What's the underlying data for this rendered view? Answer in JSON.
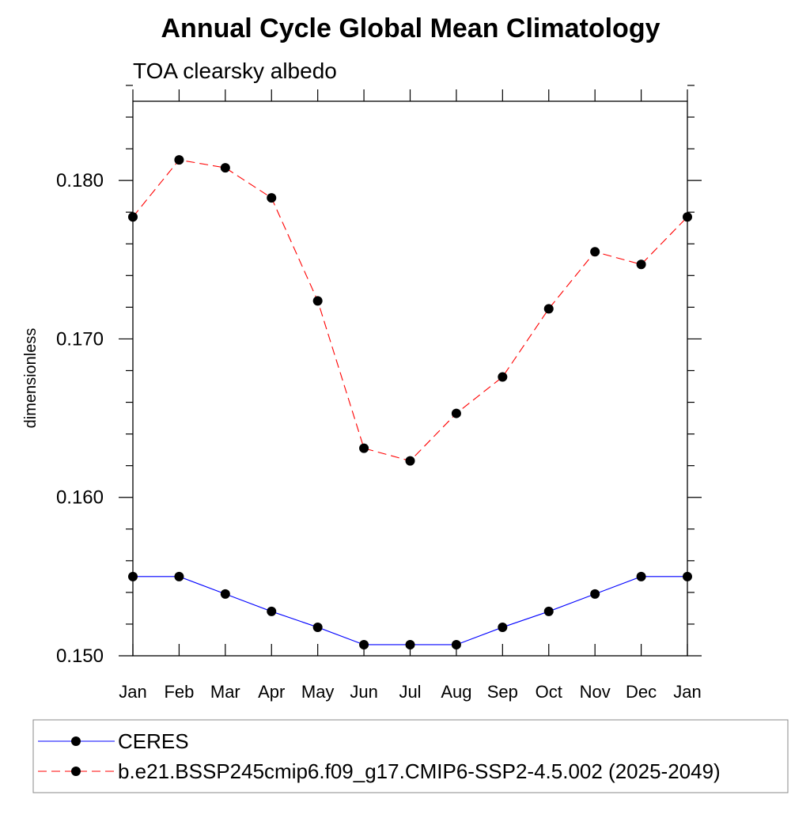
{
  "chart_data": {
    "type": "line",
    "title": "Annual Cycle Global Mean Climatology",
    "subtitle": "TOA clearsky albedo",
    "xlabel": "",
    "ylabel": "dimensionless",
    "categories": [
      "Jan",
      "Feb",
      "Mar",
      "Apr",
      "May",
      "Jun",
      "Jul",
      "Aug",
      "Sep",
      "Oct",
      "Nov",
      "Dec",
      "Jan"
    ],
    "ylim": [
      0.15,
      0.185
    ],
    "y_ticks": [
      0.15,
      0.16,
      0.17,
      0.18
    ],
    "y_tick_labels": [
      "0.150",
      "0.160",
      "0.170",
      "0.180"
    ],
    "grid": false,
    "legend_position": "bottom",
    "series": [
      {
        "name": "CERES",
        "values": [
          0.155,
          0.155,
          0.1539,
          0.1528,
          0.1518,
          0.1507,
          0.1507,
          0.1507,
          0.1518,
          0.1528,
          0.1539,
          0.155,
          0.155
        ],
        "color": "#0000ff",
        "style": "solid",
        "marker": "circle"
      },
      {
        "name": "b.e21.BSSP245cmip6.f09_g17.CMIP6-SSP2-4.5.002 (2025-2049)",
        "values": [
          0.1777,
          0.1813,
          0.1808,
          0.1789,
          0.1724,
          0.1631,
          0.1623,
          0.1653,
          0.1676,
          0.1719,
          0.1755,
          0.1747,
          0.1777
        ],
        "color": "#ff0000",
        "style": "dashed",
        "marker": "circle"
      }
    ]
  }
}
